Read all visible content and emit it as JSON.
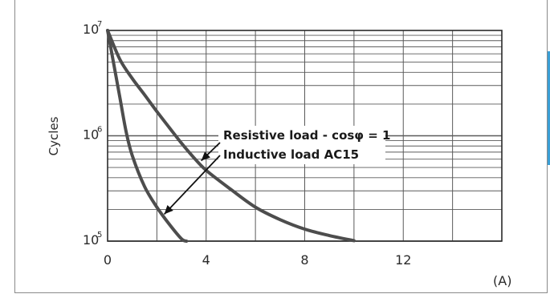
{
  "chart_data": {
    "type": "line",
    "ylabel": "Cycles",
    "xunit": "(A)",
    "xlim": [
      0,
      16
    ],
    "ylim": [
      100000,
      10000000
    ],
    "yscale": "log",
    "grid": true,
    "x_ticks": [
      {
        "value": 0,
        "label": "0"
      },
      {
        "value": 4,
        "label": "4"
      },
      {
        "value": 8,
        "label": "8"
      },
      {
        "value": 12,
        "label": "12"
      }
    ],
    "y_ticks": [
      {
        "value": 100000,
        "base": "10",
        "exp": "5"
      },
      {
        "value": 1000000,
        "base": "10",
        "exp": "6"
      },
      {
        "value": 10000000,
        "base": "10",
        "exp": "7"
      }
    ],
    "series": [
      {
        "name": "Resistive load - cosφ = 1",
        "points": [
          [
            0,
            10000000
          ],
          [
            0.5,
            5300000
          ],
          [
            1,
            3500000
          ],
          [
            1.5,
            2450000
          ],
          [
            2,
            1700000
          ],
          [
            2.5,
            1200000
          ],
          [
            3,
            850000
          ],
          [
            3.5,
            620000
          ],
          [
            4,
            470000
          ],
          [
            5,
            310000
          ],
          [
            6,
            210000
          ],
          [
            7,
            160000
          ],
          [
            8,
            130000
          ],
          [
            9,
            113000
          ],
          [
            10,
            101000
          ]
        ]
      },
      {
        "name": "Inductive load AC15",
        "points": [
          [
            0,
            10000000
          ],
          [
            0.25,
            4800000
          ],
          [
            0.5,
            2300000
          ],
          [
            0.75,
            1100000
          ],
          [
            1,
            650000
          ],
          [
            1.5,
            330000
          ],
          [
            2,
            210000
          ],
          [
            2.5,
            145000
          ],
          [
            3,
            105000
          ],
          [
            3.2,
            100000
          ]
        ]
      }
    ],
    "annotations": [
      {
        "text": "Resistive load - cosφ = 1",
        "points_to": [
          3.8,
          580000
        ]
      },
      {
        "text": "Inductive load AC15",
        "points_to": [
          2.3,
          180000
        ]
      }
    ]
  },
  "colors": {
    "line": "#4d4d4d",
    "grid": "#5a5a5a",
    "text": "#2a2a2a",
    "frame": "#8a8a8a",
    "accent": "#3a9fd6"
  }
}
